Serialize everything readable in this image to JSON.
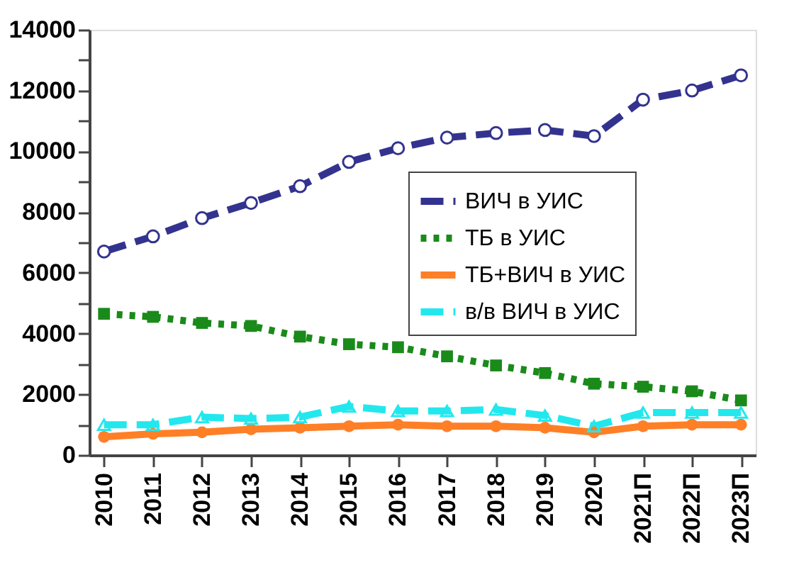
{
  "chart_data": {
    "type": "line",
    "categories": [
      "2010",
      "2011",
      "2012",
      "2013",
      "2014",
      "2015",
      "2016",
      "2017",
      "2018",
      "2019",
      "2020",
      "2021П",
      "2022П",
      "2023П"
    ],
    "ylim": [
      0,
      14000
    ],
    "yticks": [
      0,
      {
        "value": 1000,
        "label": null
      },
      2000,
      {
        "value": 3000,
        "label": null
      },
      4000,
      {
        "value": 5000,
        "label": null
      },
      6000,
      {
        "value": 7000,
        "label": null
      },
      8000,
      {
        "value": 9000,
        "label": null
      },
      10000,
      {
        "value": 11000,
        "label": null
      },
      12000,
      {
        "value": 13000,
        "label": null
      },
      14000
    ],
    "grid": false,
    "legend": "right",
    "series": [
      {
        "name": "ВИЧ в УИС",
        "color": "#33338f",
        "line_style": "dashed",
        "marker": "circle",
        "values": [
          6700,
          7200,
          7800,
          8300,
          8850,
          9650,
          10100,
          10450,
          10600,
          10700,
          10500,
          11700,
          12000,
          12500
        ]
      },
      {
        "name": "ТБ в УИС",
        "color": "#1a8a1a",
        "line_style": "dotted",
        "marker": "square",
        "values": [
          4650,
          4550,
          4350,
          4250,
          3900,
          3650,
          3550,
          3250,
          2950,
          2700,
          2350,
          2250,
          2100,
          1800
        ]
      },
      {
        "name": "ТБ+ВИЧ в УИС",
        "color": "#ff7f27",
        "line_style": "solid",
        "marker": "circle",
        "values": [
          600,
          700,
          750,
          850,
          900,
          950,
          1000,
          950,
          950,
          900,
          750,
          950,
          1000,
          1000
        ]
      },
      {
        "name": "в/в ВИЧ в УИС",
        "color": "#22e8ee",
        "line_style": "dashed",
        "marker": "triangle",
        "values": [
          1000,
          1000,
          1250,
          1200,
          1250,
          1600,
          1450,
          1450,
          1500,
          1300,
          950,
          1400,
          1400,
          1400
        ]
      }
    ]
  }
}
